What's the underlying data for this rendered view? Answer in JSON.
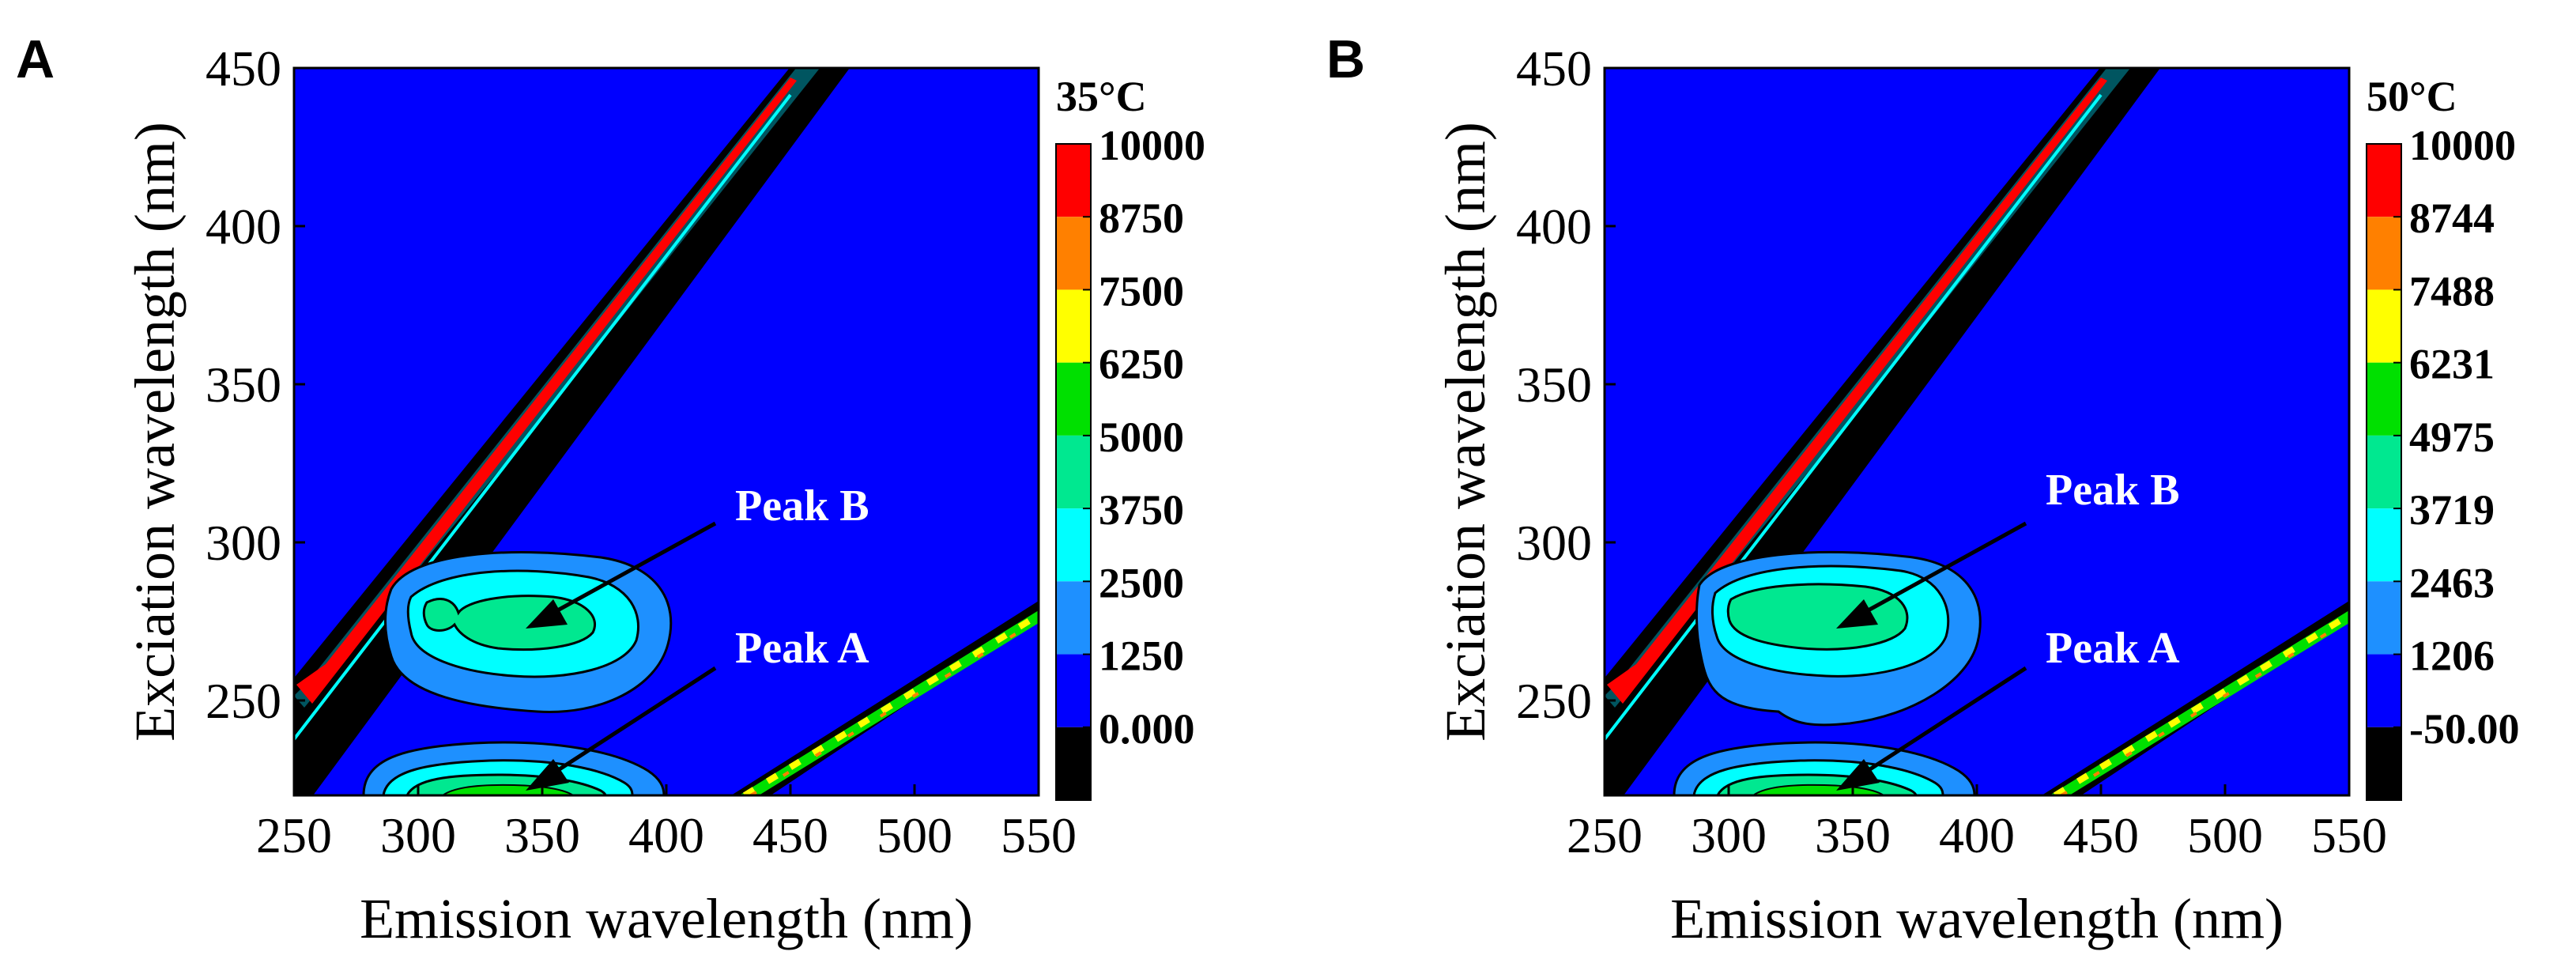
{
  "chart_data": [
    {
      "type": "contour",
      "panel": "A",
      "temperature": "35°C",
      "xlabel": "Emission wavelength (nm)",
      "ylabel": "Exciation wavelength (nm)",
      "xlim": [
        250,
        550
      ],
      "ylim": [
        220,
        450
      ],
      "xticks": [
        "250",
        "300",
        "350",
        "400",
        "450",
        "500",
        "550"
      ],
      "yticks": [
        "250",
        "300",
        "350",
        "400",
        "450"
      ],
      "colorbar": {
        "levels": [
          "10000",
          "8750",
          "7500",
          "6250",
          "5000",
          "3750",
          "2500",
          "1250",
          "0.000"
        ],
        "colors": [
          "#ff0000",
          "#ff8000",
          "#ffff00",
          "#00e000",
          "#00e890",
          "#00ffff",
          "#1e90ff",
          "#0000ff",
          "#000000"
        ]
      },
      "annotations": [
        {
          "label": "Peak B",
          "em": 345,
          "ex": 277,
          "text_em": 445,
          "text_ex": 305
        },
        {
          "label": "Peak A",
          "em": 345,
          "ex": 225,
          "text_em": 445,
          "text_ex": 265
        }
      ],
      "peaks": [
        {
          "name": "Peak B",
          "em": 345,
          "ex": 277,
          "max_level": "5000"
        },
        {
          "name": "Peak A",
          "em": 345,
          "ex": 225,
          "max_level": "5000"
        }
      ]
    },
    {
      "type": "contour",
      "panel": "B",
      "temperature": "50°C",
      "xlabel": "Emission wavelength (nm)",
      "ylabel": "Exciation wavelength (nm)",
      "xlim": [
        250,
        550
      ],
      "ylim": [
        220,
        450
      ],
      "xticks": [
        "250",
        "300",
        "350",
        "400",
        "450",
        "500",
        "550"
      ],
      "yticks": [
        "250",
        "300",
        "350",
        "400",
        "450"
      ],
      "colorbar": {
        "levels": [
          "10000",
          "8744",
          "7488",
          "6231",
          "4975",
          "3719",
          "2463",
          "1206",
          "-50.00"
        ],
        "colors": [
          "#ff0000",
          "#ff8000",
          "#ffff00",
          "#00e000",
          "#00e890",
          "#00ffff",
          "#1e90ff",
          "#0000ff",
          "#000000"
        ]
      },
      "annotations": [
        {
          "label": "Peak B",
          "em": 350,
          "ex": 277,
          "text_em": 445,
          "text_ex": 305
        },
        {
          "label": "Peak A",
          "em": 350,
          "ex": 225,
          "text_em": 445,
          "text_ex": 265
        }
      ],
      "peaks": [
        {
          "name": "Peak B",
          "em": 348,
          "ex": 277,
          "max_level": "4975"
        },
        {
          "name": "Peak A",
          "em": 345,
          "ex": 225,
          "max_level": "4975"
        }
      ]
    }
  ]
}
